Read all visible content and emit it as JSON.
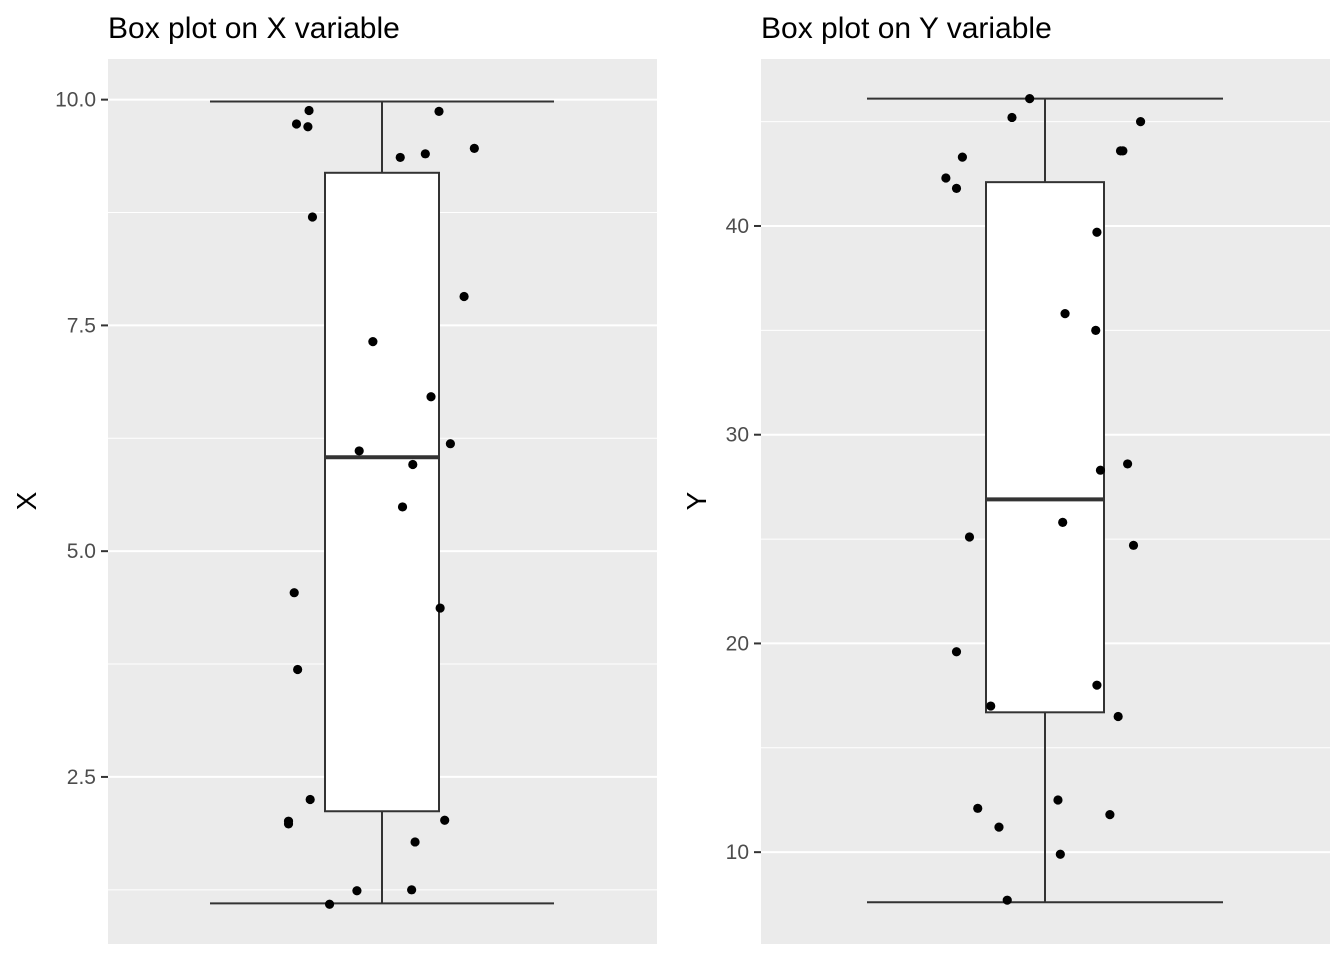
{
  "chart_data": [
    {
      "type": "box",
      "title": "Box plot on X variable",
      "ylabel": "X",
      "xlabel": "",
      "ylim": [
        0.65,
        10.45
      ],
      "yticks": [
        "2.5",
        "5.0",
        "7.5",
        "10.0"
      ],
      "grid": true,
      "box": {
        "min": 1.1,
        "q1": 2.12,
        "median": 6.04,
        "q3": 9.19,
        "max": 9.98
      },
      "points": [
        {
          "jitter": -0.75,
          "y": 9.73
        },
        {
          "jitter": -0.64,
          "y": 9.88
        },
        {
          "jitter": -0.65,
          "y": 9.7
        },
        {
          "jitter": 0.5,
          "y": 9.87
        },
        {
          "jitter": 0.81,
          "y": 9.46
        },
        {
          "jitter": 0.38,
          "y": 9.4
        },
        {
          "jitter": 0.16,
          "y": 9.36
        },
        {
          "jitter": -0.61,
          "y": 8.7
        },
        {
          "jitter": 0.72,
          "y": 7.82
        },
        {
          "jitter": -0.08,
          "y": 7.32
        },
        {
          "jitter": 0.43,
          "y": 6.71
        },
        {
          "jitter": 0.6,
          "y": 6.19
        },
        {
          "jitter": -0.2,
          "y": 6.11
        },
        {
          "jitter": 0.27,
          "y": 5.96
        },
        {
          "jitter": 0.18,
          "y": 5.49
        },
        {
          "jitter": -0.77,
          "y": 4.54
        },
        {
          "jitter": 0.51,
          "y": 4.37
        },
        {
          "jitter": -0.74,
          "y": 3.69
        },
        {
          "jitter": -0.63,
          "y": 2.25
        },
        {
          "jitter": 0.55,
          "y": 2.02
        },
        {
          "jitter": -0.82,
          "y": 2.01
        },
        {
          "jitter": -0.82,
          "y": 1.98
        },
        {
          "jitter": 0.29,
          "y": 1.78
        },
        {
          "jitter": -0.22,
          "y": 1.24
        },
        {
          "jitter": 0.26,
          "y": 1.25
        },
        {
          "jitter": -0.46,
          "y": 1.09
        }
      ]
    },
    {
      "type": "box",
      "title": "Box plot on Y variable",
      "ylabel": "Y",
      "xlabel": "",
      "ylim": [
        5.6,
        48.0
      ],
      "yticks": [
        "10",
        "20",
        "30",
        "40"
      ],
      "grid": true,
      "box": {
        "min": 7.6,
        "q1": 16.7,
        "median": 26.9,
        "q3": 42.1,
        "max": 46.1
      },
      "points": [
        {
          "jitter": -0.13,
          "y": 46.1
        },
        {
          "jitter": -0.28,
          "y": 45.2
        },
        {
          "jitter": 0.81,
          "y": 45.0
        },
        {
          "jitter": 0.66,
          "y": 43.6
        },
        {
          "jitter": 0.64,
          "y": 43.6
        },
        {
          "jitter": -0.7,
          "y": 43.3
        },
        {
          "jitter": -0.84,
          "y": 42.3
        },
        {
          "jitter": -0.75,
          "y": 41.8
        },
        {
          "jitter": 0.44,
          "y": 39.7
        },
        {
          "jitter": 0.17,
          "y": 35.8
        },
        {
          "jitter": 0.43,
          "y": 35.0
        },
        {
          "jitter": 0.7,
          "y": 28.6
        },
        {
          "jitter": 0.47,
          "y": 28.3
        },
        {
          "jitter": -0.64,
          "y": 25.1
        },
        {
          "jitter": 0.15,
          "y": 25.8
        },
        {
          "jitter": 0.75,
          "y": 24.7
        },
        {
          "jitter": -0.75,
          "y": 19.6
        },
        {
          "jitter": 0.44,
          "y": 18.0
        },
        {
          "jitter": -0.46,
          "y": 17.0
        },
        {
          "jitter": 0.62,
          "y": 16.5
        },
        {
          "jitter": 0.11,
          "y": 12.5
        },
        {
          "jitter": -0.57,
          "y": 12.1
        },
        {
          "jitter": 0.55,
          "y": 11.8
        },
        {
          "jitter": -0.39,
          "y": 11.2
        },
        {
          "jitter": 0.13,
          "y": 9.9
        },
        {
          "jitter": -0.32,
          "y": 7.7
        }
      ]
    }
  ]
}
